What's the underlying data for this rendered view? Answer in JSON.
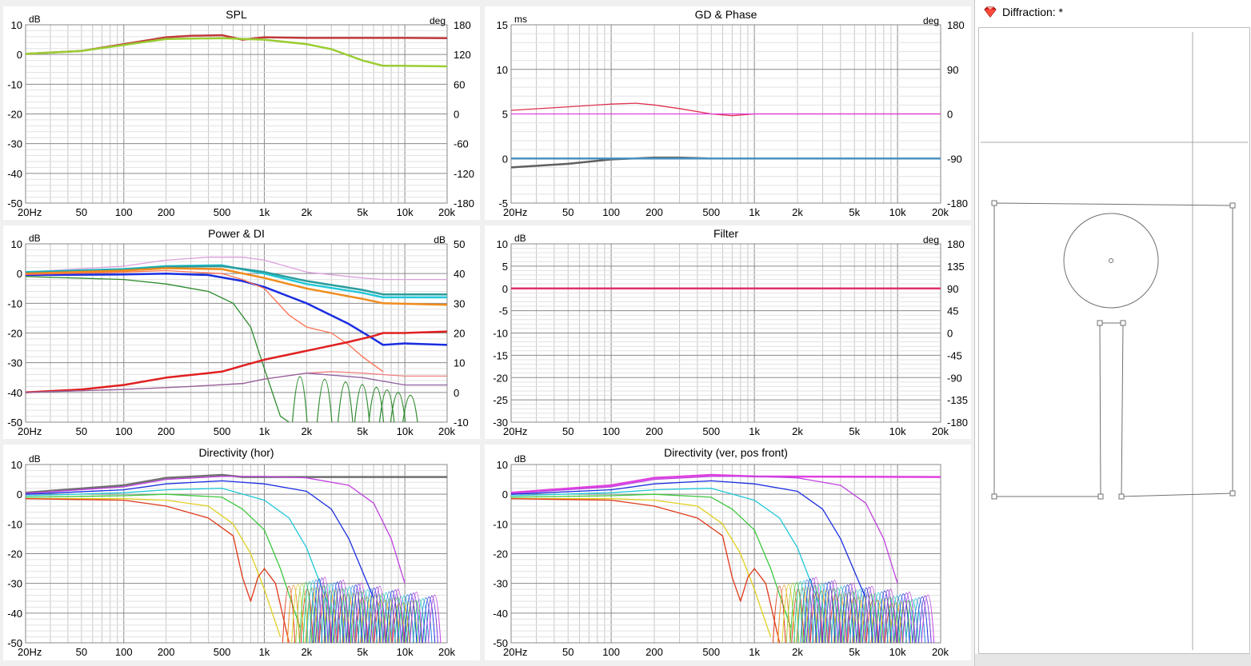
{
  "colors": {
    "grid": "#c7c7c7",
    "grid_major": "#8a8a8a",
    "frame": "#8a8a8a"
  },
  "x_ticks": [
    "20Hz",
    "50",
    "100",
    "200",
    "500",
    "1k",
    "2k",
    "5k",
    "10k",
    "20k"
  ],
  "panels": [
    {
      "id": "spl",
      "title": "SPL",
      "left_unit": "dB",
      "right_unit": "deg",
      "left_ticks": [
        "10",
        "0",
        "-10",
        "-20",
        "-30",
        "-40",
        "-50"
      ],
      "right_ticks": [
        "180",
        "120",
        "60",
        "0",
        "-60",
        "-120",
        "-180"
      ]
    },
    {
      "id": "gd-phase",
      "title": "GD & Phase",
      "left_unit": "ms",
      "right_unit": "deg",
      "left_ticks": [
        "15",
        "10",
        "5",
        "0",
        "-5"
      ],
      "right_ticks": [
        "180",
        "90",
        "0",
        "-90",
        "-180"
      ]
    },
    {
      "id": "power-di",
      "title": "Power & DI",
      "left_unit": "dB",
      "right_unit": "dB",
      "left_ticks": [
        "10",
        "0",
        "-10",
        "-20",
        "-30",
        "-40",
        "-50"
      ],
      "right_ticks": [
        "50",
        "40",
        "30",
        "20",
        "10",
        "0",
        "-10"
      ]
    },
    {
      "id": "filter",
      "title": "Filter",
      "left_unit": "dB",
      "right_unit": "deg",
      "left_ticks": [
        "10",
        "5",
        "0",
        "-5",
        "-10",
        "-15",
        "-20",
        "-25",
        "-30"
      ],
      "right_ticks": [
        "180",
        "135",
        "90",
        "45",
        "0",
        "-45",
        "-90",
        "-135",
        "-180"
      ]
    },
    {
      "id": "dir-hor",
      "title": "Directivity (hor)",
      "left_unit": "dB",
      "right_unit": "",
      "left_ticks": [
        "10",
        "0",
        "-10",
        "-20",
        "-30",
        "-40",
        "-50"
      ],
      "right_ticks": []
    },
    {
      "id": "dir-ver",
      "title": "Directivity (ver, pos front)",
      "left_unit": "dB",
      "right_unit": "",
      "left_ticks": [
        "10",
        "0",
        "-10",
        "-20",
        "-30",
        "-40",
        "-50"
      ],
      "right_ticks": []
    }
  ],
  "chart_data": [
    {
      "type": "line",
      "title": "SPL",
      "x_scale": "log",
      "xlim": [
        20,
        20000
      ],
      "ylim": [
        -50,
        10
      ],
      "y2lim": [
        -180,
        180
      ],
      "series": [
        {
          "color": "#c0393b",
          "axis": "left",
          "x": [
            20,
            50,
            100,
            200,
            300,
            500,
            700,
            1000,
            2000,
            5000,
            10000,
            20000
          ],
          "y": [
            0.2,
            1.2,
            3.5,
            5.8,
            6.3,
            6.5,
            5.0,
            5.8,
            5.6,
            5.6,
            5.6,
            5.5
          ]
        },
        {
          "color": "#9acd32",
          "axis": "left",
          "x": [
            20,
            50,
            100,
            200,
            500,
            1000,
            2000,
            3000,
            5000,
            7000,
            10000,
            20000
          ],
          "y": [
            0.2,
            1.2,
            3.2,
            5.2,
            5.5,
            5.0,
            3.5,
            1.8,
            -2.0,
            -3.8,
            -3.8,
            -4.0
          ]
        }
      ]
    },
    {
      "type": "line",
      "title": "GD & Phase",
      "x_scale": "log",
      "xlim": [
        20,
        20000
      ],
      "ylim": [
        -5,
        15
      ],
      "y2lim": [
        -180,
        180
      ],
      "series": [
        {
          "color": "#e03050",
          "axis": "left",
          "x": [
            20,
            50,
            100,
            150,
            200,
            300,
            500,
            700,
            1000,
            2000,
            20000
          ],
          "y": [
            5.4,
            5.8,
            6.1,
            6.2,
            6.0,
            5.6,
            5.0,
            4.8,
            5.0,
            5.0,
            5.0
          ]
        },
        {
          "color": "#e040e0",
          "axis": "left",
          "x": [
            20,
            20000
          ],
          "y": [
            5.0,
            5.0
          ]
        },
        {
          "color": "#606060",
          "axis": "left",
          "x": [
            20,
            50,
            100,
            200,
            300,
            500,
            1000,
            20000
          ],
          "y": [
            -1.0,
            -0.6,
            -0.1,
            0.1,
            0.1,
            0.0,
            0.0,
            0.0
          ]
        },
        {
          "color": "#4a90c0",
          "axis": "left",
          "x": [
            20,
            20000
          ],
          "y": [
            0.0,
            0.0
          ]
        }
      ]
    },
    {
      "type": "line",
      "title": "Power & DI",
      "x_scale": "log",
      "xlim": [
        20,
        20000
      ],
      "ylim": [
        -50,
        10
      ],
      "y2lim": [
        -10,
        50
      ],
      "series": [
        {
          "color": "#dda0dd",
          "axis": "left",
          "x": [
            20,
            100,
            200,
            400,
            700,
            1000,
            2000,
            5000,
            7000,
            20000
          ],
          "y": [
            0.5,
            2.5,
            4.5,
            5.5,
            5.5,
            4.5,
            0.5,
            -1.5,
            -2.0,
            -2.0
          ]
        },
        {
          "color": "#20c8d8",
          "axis": "left",
          "x": [
            20,
            100,
            200,
            500,
            1000,
            2000,
            5000,
            7000,
            20000
          ],
          "y": [
            0.5,
            1.5,
            2.5,
            2.8,
            0.0,
            -3.5,
            -6.5,
            -8.0,
            -8.0
          ]
        },
        {
          "color": "#2a9d9d",
          "axis": "left",
          "x": [
            20,
            100,
            200,
            500,
            1000,
            2000,
            5000,
            7000,
            20000
          ],
          "y": [
            0.3,
            1.3,
            2.3,
            2.5,
            0.5,
            -2.5,
            -5.5,
            -7.0,
            -7.0
          ]
        },
        {
          "color": "#f08c1c",
          "axis": "left",
          "x": [
            20,
            100,
            200,
            500,
            1000,
            2000,
            5000,
            7000,
            20000
          ],
          "y": [
            0.0,
            1.0,
            1.8,
            1.5,
            -1.5,
            -5.0,
            -8.5,
            -10.0,
            -10.5
          ]
        },
        {
          "color": "#1a2ee0",
          "axis": "left",
          "x": [
            20,
            100,
            200,
            400,
            700,
            1000,
            2000,
            4000,
            6000,
            7000,
            10000,
            20000
          ],
          "y": [
            -0.5,
            -0.3,
            0.0,
            -0.5,
            -2.5,
            -4.5,
            -10.0,
            -17.0,
            -22.0,
            -24.0,
            -23.5,
            -24.0
          ]
        },
        {
          "color": "#ff7050",
          "axis": "left",
          "x": [
            20,
            100,
            200,
            500,
            700,
            1000,
            1500,
            2000,
            3000,
            4000,
            5000,
            7000
          ],
          "y": [
            -0.3,
            0.5,
            1.0,
            0.0,
            -2.0,
            -5.0,
            -14.0,
            -18.0,
            -20.0,
            -24.0,
            -28.0,
            -33.0
          ]
        },
        {
          "color": "#2e8b2e",
          "axis": "left",
          "x": [
            20,
            100,
            200,
            400,
            600,
            800,
            1000,
            1300,
            1500
          ],
          "y": [
            -1.0,
            -2.0,
            -3.5,
            -6.0,
            -10.0,
            -18.0,
            -32.0,
            -48.0,
            -50.0
          ]
        },
        {
          "color": "#e02020",
          "axis": "left",
          "x": [
            20,
            50,
            100,
            200,
            500,
            700,
            1000,
            2000,
            4000,
            6000,
            7000,
            10000,
            20000
          ],
          "y": [
            -40.0,
            -39.0,
            -37.5,
            -35.0,
            -33.0,
            -31.0,
            -29.0,
            -26.0,
            -23.0,
            -21.0,
            -20.0,
            -20.0,
            -19.5
          ]
        },
        {
          "color": "#f08080",
          "axis": "left",
          "x": [
            20,
            100,
            300,
            700,
            1000,
            2000,
            3000,
            5000,
            10000,
            20000
          ],
          "y": [
            -40.0,
            -39.0,
            -38.0,
            -37.0,
            -35.5,
            -33.5,
            -33.0,
            -33.5,
            -34.5,
            -34.5
          ]
        },
        {
          "color": "#9060a0",
          "axis": "left",
          "x": [
            20,
            100,
            300,
            700,
            1000,
            2000,
            5000,
            10000,
            20000
          ],
          "y": [
            -40.0,
            -39.0,
            -38.0,
            -37.0,
            -35.5,
            -33.5,
            -35.0,
            -37.5,
            -37.5
          ]
        }
      ]
    },
    {
      "type": "line",
      "title": "Filter",
      "x_scale": "log",
      "xlim": [
        20,
        20000
      ],
      "ylim": [
        -30,
        10
      ],
      "y2lim": [
        -180,
        180
      ],
      "series": [
        {
          "color": "#e0306a",
          "axis": "left",
          "x": [
            20,
            20000
          ],
          "y": [
            0.0,
            0.0
          ]
        }
      ]
    },
    {
      "type": "line",
      "title": "Directivity (hor)",
      "x_scale": "log",
      "xlim": [
        20,
        20000
      ],
      "ylim": [
        -50,
        10
      ],
      "series": [
        {
          "color": "#707070",
          "x": [
            20,
            100,
            200,
            500,
            700,
            1000,
            20000
          ],
          "y": [
            0.5,
            3.0,
            5.5,
            6.5,
            5.8,
            5.8,
            5.8
          ]
        },
        {
          "color": "#c040e0",
          "x": [
            20,
            100,
            200,
            500,
            1000,
            2000,
            4000,
            6000,
            8000,
            10000
          ],
          "y": [
            0.3,
            2.5,
            5.0,
            6.0,
            6.0,
            5.5,
            3.0,
            -3.0,
            -15.0,
            -30.0
          ]
        },
        {
          "color": "#1a2ee0",
          "x": [
            20,
            100,
            200,
            500,
            1000,
            2000,
            3000,
            4000,
            6000
          ],
          "y": [
            0.0,
            1.5,
            3.5,
            4.5,
            3.5,
            1.0,
            -5.0,
            -15.0,
            -35.0
          ]
        },
        {
          "color": "#20c8d8",
          "x": [
            20,
            100,
            200,
            500,
            1000,
            1500,
            2000,
            3000
          ],
          "y": [
            -0.5,
            0.5,
            1.5,
            2.0,
            -2.0,
            -8.0,
            -18.0,
            -40.0
          ]
        },
        {
          "color": "#3cc83c",
          "x": [
            20,
            100,
            200,
            500,
            700,
            1000,
            1300,
            1800
          ],
          "y": [
            -1.0,
            -0.5,
            0.0,
            -1.0,
            -5.0,
            -12.0,
            -25.0,
            -45.0
          ]
        },
        {
          "color": "#e0d020",
          "x": [
            20,
            100,
            200,
            400,
            600,
            800,
            1000,
            1300
          ],
          "y": [
            -1.5,
            -1.5,
            -2.0,
            -4.0,
            -10.0,
            -20.0,
            -32.0,
            -48.0
          ]
        },
        {
          "color": "#e03a1a",
          "x": [
            20,
            100,
            200,
            400,
            600,
            700,
            800,
            900,
            1000,
            1200,
            1500
          ],
          "y": [
            -1.5,
            -2.0,
            -4.0,
            -8.0,
            -14.0,
            -28.0,
            -36.0,
            -28.0,
            -25.0,
            -30.0,
            -50.0
          ]
        }
      ]
    },
    {
      "type": "line",
      "title": "Directivity (ver, pos front)",
      "x_scale": "log",
      "xlim": [
        20,
        20000
      ],
      "ylim": [
        -50,
        10
      ],
      "series": [
        {
          "color": "#e040e0",
          "x": [
            20,
            100,
            200,
            500,
            1000,
            20000
          ],
          "y": [
            0.5,
            3.0,
            5.5,
            6.5,
            6.0,
            5.8
          ]
        },
        {
          "color": "#c040e0",
          "x": [
            20,
            100,
            200,
            500,
            1000,
            2000,
            4000,
            6000,
            8000,
            10000
          ],
          "y": [
            0.3,
            2.5,
            5.0,
            6.0,
            6.0,
            5.5,
            3.0,
            -3.0,
            -15.0,
            -30.0
          ]
        },
        {
          "color": "#1a2ee0",
          "x": [
            20,
            100,
            200,
            500,
            1000,
            2000,
            3000,
            4000,
            6000
          ],
          "y": [
            0.0,
            1.5,
            3.5,
            4.5,
            3.5,
            1.0,
            -5.0,
            -15.0,
            -35.0
          ]
        },
        {
          "color": "#20c8d8",
          "x": [
            20,
            100,
            200,
            500,
            1000,
            1500,
            2000,
            3000
          ],
          "y": [
            -0.5,
            0.5,
            1.5,
            2.0,
            -2.0,
            -8.0,
            -18.0,
            -40.0
          ]
        },
        {
          "color": "#3cc83c",
          "x": [
            20,
            100,
            200,
            500,
            700,
            1000,
            1300,
            1800
          ],
          "y": [
            -1.0,
            -0.5,
            0.0,
            -1.0,
            -5.0,
            -12.0,
            -25.0,
            -45.0
          ]
        },
        {
          "color": "#e0d020",
          "x": [
            20,
            100,
            200,
            400,
            600,
            800,
            1000,
            1300
          ],
          "y": [
            -1.5,
            -1.5,
            -2.0,
            -4.0,
            -10.0,
            -20.0,
            -32.0,
            -48.0
          ]
        },
        {
          "color": "#e03a1a",
          "x": [
            20,
            100,
            200,
            400,
            600,
            700,
            800,
            900,
            1000,
            1200,
            1500
          ],
          "y": [
            -1.5,
            -2.0,
            -4.0,
            -8.0,
            -14.0,
            -28.0,
            -36.0,
            -28.0,
            -25.0,
            -30.0,
            -50.0
          ]
        }
      ]
    }
  ],
  "diffraction": {
    "title": "Diffraction: *",
    "icon": "ruby-gem-icon"
  }
}
